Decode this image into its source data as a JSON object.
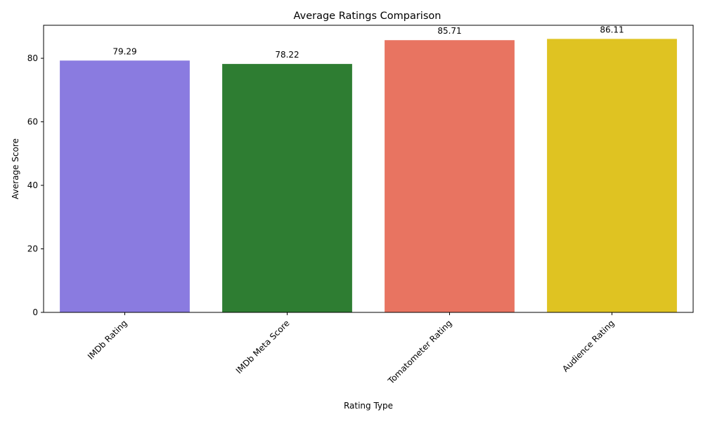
{
  "chart_data": {
    "type": "bar",
    "title": "Average Ratings Comparison",
    "xlabel": "Rating Type",
    "ylabel": "Average Score",
    "categories": [
      "IMDb Rating",
      "IMDb Meta Score",
      "Tomatometer Rating",
      "Audience Rating"
    ],
    "values": [
      79.29,
      78.22,
      85.71,
      86.11
    ],
    "value_labels": [
      "79.29",
      "78.22",
      "85.71",
      "86.11"
    ],
    "colors": [
      "#8a7be0",
      "#2e7d32",
      "#e87461",
      "#dfc322"
    ],
    "ylim": [
      0,
      90.4
    ],
    "yticks": [
      0,
      20,
      40,
      60,
      80
    ],
    "ytick_labels": [
      "0",
      "20",
      "40",
      "60",
      "80"
    ],
    "grid": false,
    "legend": "none"
  }
}
